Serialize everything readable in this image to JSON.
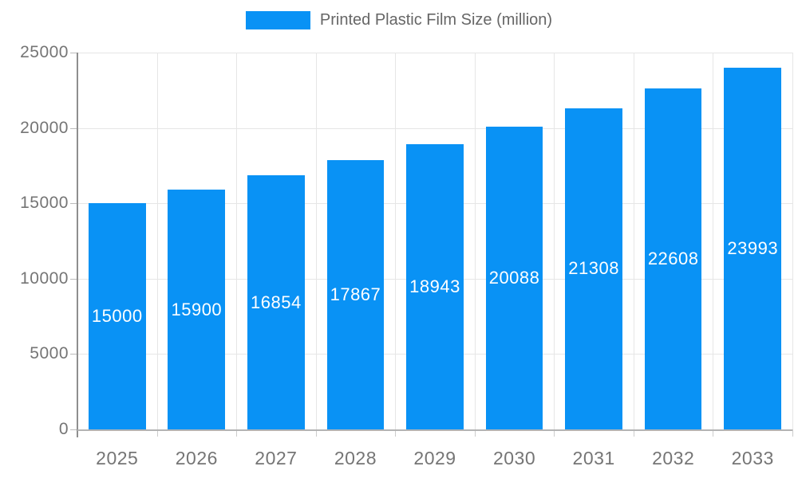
{
  "chart_data": {
    "type": "bar",
    "title": "Printed Plastic Film Size (million)",
    "categories": [
      "2025",
      "2026",
      "2027",
      "2028",
      "2029",
      "2030",
      "2031",
      "2032",
      "2033"
    ],
    "series": [
      {
        "name": "Printed Plastic Film Size (million)",
        "values": [
          15000,
          15900,
          16854,
          17867,
          18943,
          20088,
          21308,
          22608,
          23993
        ]
      }
    ],
    "xlabel": "",
    "ylabel": "",
    "ylim": [
      0,
      25000
    ],
    "yticks": [
      0,
      5000,
      10000,
      15000,
      20000,
      25000
    ],
    "grid": true,
    "legend_position": "top-center",
    "value_label_position": "inside-center",
    "colors": {
      "bar": "#0992f5",
      "grid": "#e6e6e6",
      "y_axis": "#8f8f8f",
      "x_axis": "#b3b3b3",
      "tick_label": "#757575",
      "legend_text": "#666666",
      "value_label": "#ffffff"
    }
  }
}
